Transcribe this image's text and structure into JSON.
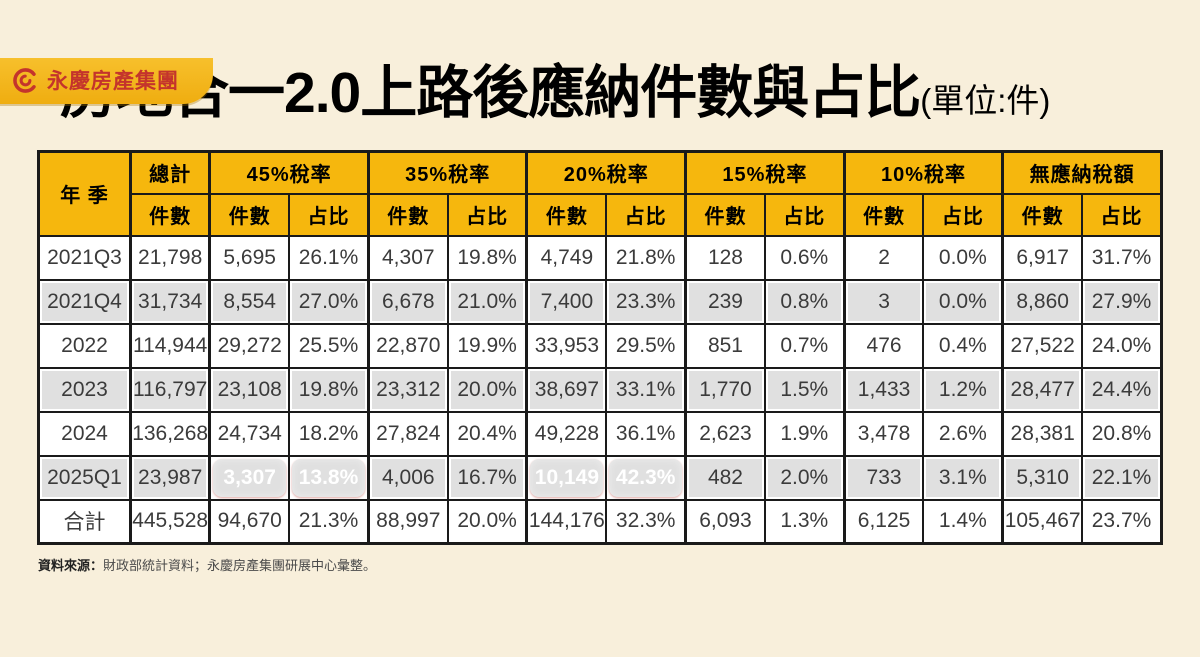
{
  "logo": {
    "text": "永慶房產集團"
  },
  "title": {
    "part1": "房地合一2.0上路後",
    "part2": "應納件數與占比",
    "unit": "(單位:件)"
  },
  "chart_data": {
    "type": "table",
    "title": "房地合一2.0上路後應納件數與占比",
    "unit_note": "單位:件",
    "corner_header": "年 季",
    "groups": [
      {
        "label": "總計",
        "sub": [
          "件數"
        ]
      },
      {
        "label": "45%稅率",
        "sub": [
          "件數",
          "占比"
        ]
      },
      {
        "label": "35%稅率",
        "sub": [
          "件數",
          "占比"
        ]
      },
      {
        "label": "20%稅率",
        "sub": [
          "件數",
          "占比"
        ]
      },
      {
        "label": "15%稅率",
        "sub": [
          "件數",
          "占比"
        ]
      },
      {
        "label": "10%稅率",
        "sub": [
          "件數",
          "占比"
        ]
      },
      {
        "label": "無應納稅額",
        "sub": [
          "件數",
          "占比"
        ]
      }
    ],
    "rows": [
      {
        "label": "2021Q3",
        "shaded": false,
        "highlight_cols": [],
        "values": [
          "21,798",
          "5,695",
          "26.1%",
          "4,307",
          "19.8%",
          "4,749",
          "21.8%",
          "128",
          "0.6%",
          "2",
          "0.0%",
          "6,917",
          "31.7%"
        ]
      },
      {
        "label": "2021Q4",
        "shaded": true,
        "highlight_cols": [],
        "values": [
          "31,734",
          "8,554",
          "27.0%",
          "6,678",
          "21.0%",
          "7,400",
          "23.3%",
          "239",
          "0.8%",
          "3",
          "0.0%",
          "8,860",
          "27.9%"
        ]
      },
      {
        "label": "2022",
        "shaded": false,
        "highlight_cols": [],
        "values": [
          "114,944",
          "29,272",
          "25.5%",
          "22,870",
          "19.9%",
          "33,953",
          "29.5%",
          "851",
          "0.7%",
          "476",
          "0.4%",
          "27,522",
          "24.0%"
        ]
      },
      {
        "label": "2023",
        "shaded": true,
        "highlight_cols": [],
        "values": [
          "116,797",
          "23,108",
          "19.8%",
          "23,312",
          "20.0%",
          "38,697",
          "33.1%",
          "1,770",
          "1.5%",
          "1,433",
          "1.2%",
          "28,477",
          "24.4%"
        ]
      },
      {
        "label": "2024",
        "shaded": false,
        "highlight_cols": [],
        "values": [
          "136,268",
          "24,734",
          "18.2%",
          "27,824",
          "20.4%",
          "49,228",
          "36.1%",
          "2,623",
          "1.9%",
          "3,478",
          "2.6%",
          "28,381",
          "20.8%"
        ]
      },
      {
        "label": "2025Q1",
        "shaded": true,
        "highlight_cols": [
          1,
          2,
          5,
          6
        ],
        "values": [
          "23,987",
          "3,307",
          "13.8%",
          "4,006",
          "16.7%",
          "10,149",
          "42.3%",
          "482",
          "2.0%",
          "733",
          "3.1%",
          "5,310",
          "22.1%"
        ]
      },
      {
        "label": "合計",
        "shaded": false,
        "highlight_cols": [],
        "values": [
          "445,528",
          "94,670",
          "21.3%",
          "88,997",
          "20.0%",
          "144,176",
          "32.3%",
          "6,093",
          "1.3%",
          "6,125",
          "1.4%",
          "105,467",
          "23.7%"
        ]
      }
    ]
  },
  "footer": {
    "source_label": "資料來源：",
    "source_text": "財政部統計資料；永慶房產集團研展中心彙整。"
  },
  "colors": {
    "page_background": "#F8EFDB",
    "header_background": "#F6B70D",
    "highlight_red": "#F4433C",
    "row_gray": "#E0E0E0",
    "grid_line": "#1A1A1A",
    "brand_red": "#C4342C"
  }
}
